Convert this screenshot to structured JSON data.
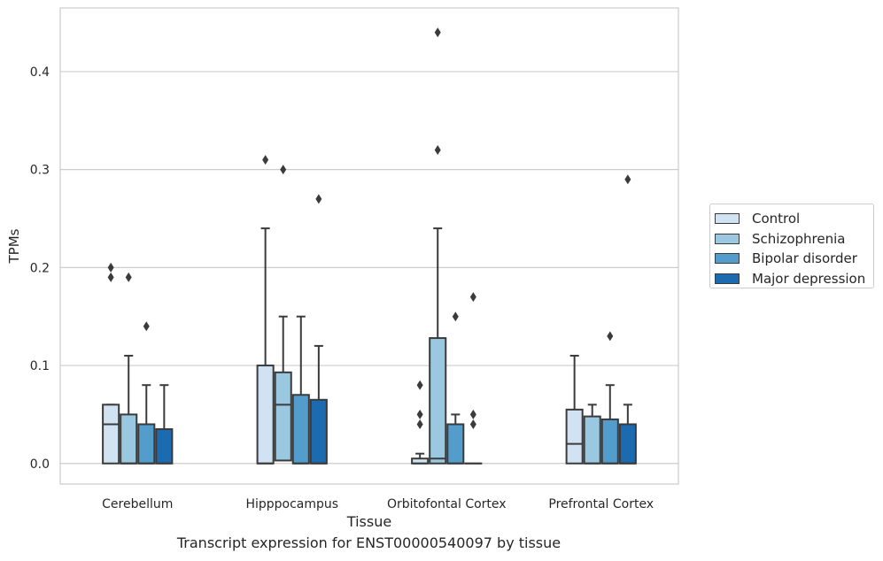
{
  "figure": {
    "caption": "Transcript expression for ENST00000540097 by tissue"
  },
  "chart_data": {
    "type": "boxplot",
    "xlabel": "Tissue",
    "ylabel": "TPMs",
    "ylim": [
      -0.021,
      0.465
    ],
    "yticks": [
      0.0,
      0.1,
      0.2,
      0.3,
      0.4
    ],
    "ytick_labels": [
      "0.0",
      "0.1",
      "0.2",
      "0.3",
      "0.4"
    ],
    "grid": "horizontal",
    "legend_position": "right",
    "categories": [
      "Cerebellum",
      "Hipppocampus",
      "Orbitofontal Cortex",
      "Prefrontal Cortex"
    ],
    "series": [
      {
        "name": "Control",
        "color": "#d1e2f2",
        "boxes": [
          {
            "whisker_low": 0.0,
            "q1": 0.0,
            "median": 0.04,
            "q3": 0.06,
            "whisker_high": 0.06,
            "outliers": [
              0.2,
              0.19
            ]
          },
          {
            "whisker_low": 0.0,
            "q1": 0.0,
            "median": 0.0,
            "q3": 0.1,
            "whisker_high": 0.24,
            "outliers": [
              0.31
            ]
          },
          {
            "whisker_low": 0.0,
            "q1": 0.0,
            "median": 0.0,
            "q3": 0.005,
            "whisker_high": 0.01,
            "outliers": [
              0.08,
              0.05,
              0.04
            ]
          },
          {
            "whisker_low": 0.0,
            "q1": 0.0,
            "median": 0.02,
            "q3": 0.055,
            "whisker_high": 0.11,
            "outliers": []
          }
        ]
      },
      {
        "name": "Schizophrenia",
        "color": "#9ac8e0",
        "boxes": [
          {
            "whisker_low": 0.0,
            "q1": 0.0,
            "median": 0.0,
            "q3": 0.05,
            "whisker_high": 0.11,
            "outliers": [
              0.19
            ]
          },
          {
            "whisker_low": 0.0,
            "q1": 0.003,
            "median": 0.06,
            "q3": 0.093,
            "whisker_high": 0.15,
            "outliers": [
              0.3
            ]
          },
          {
            "whisker_low": 0.0,
            "q1": 0.0,
            "median": 0.005,
            "q3": 0.128,
            "whisker_high": 0.24,
            "outliers": [
              0.44,
              0.32
            ]
          },
          {
            "whisker_low": 0.0,
            "q1": 0.0,
            "median": 0.0,
            "q3": 0.048,
            "whisker_high": 0.06,
            "outliers": []
          }
        ]
      },
      {
        "name": "Bipolar disorder",
        "color": "#529dcc",
        "boxes": [
          {
            "whisker_low": 0.0,
            "q1": 0.0,
            "median": 0.0,
            "q3": 0.04,
            "whisker_high": 0.08,
            "outliers": [
              0.14
            ]
          },
          {
            "whisker_low": 0.0,
            "q1": 0.0,
            "median": 0.0,
            "q3": 0.07,
            "whisker_high": 0.15,
            "outliers": []
          },
          {
            "whisker_low": 0.0,
            "q1": 0.0,
            "median": 0.0,
            "q3": 0.04,
            "whisker_high": 0.05,
            "outliers": [
              0.15
            ]
          },
          {
            "whisker_low": 0.0,
            "q1": 0.0,
            "median": 0.0,
            "q3": 0.045,
            "whisker_high": 0.08,
            "outliers": [
              0.13
            ]
          }
        ]
      },
      {
        "name": "Major depression",
        "color": "#1c6aaf",
        "boxes": [
          {
            "whisker_low": 0.0,
            "q1": 0.0,
            "median": 0.0,
            "q3": 0.035,
            "whisker_high": 0.08,
            "outliers": []
          },
          {
            "whisker_low": 0.0,
            "q1": 0.0,
            "median": 0.0,
            "q3": 0.065,
            "whisker_high": 0.12,
            "outliers": [
              0.27
            ]
          },
          {
            "whisker_low": 0.0,
            "q1": 0.0,
            "median": 0.0,
            "q3": 0.0,
            "whisker_high": 0.0,
            "outliers": [
              0.17,
              0.05,
              0.04
            ]
          },
          {
            "whisker_low": 0.0,
            "q1": 0.0,
            "median": 0.0,
            "q3": 0.04,
            "whisker_high": 0.06,
            "outliers": [
              0.29
            ]
          }
        ]
      }
    ]
  }
}
